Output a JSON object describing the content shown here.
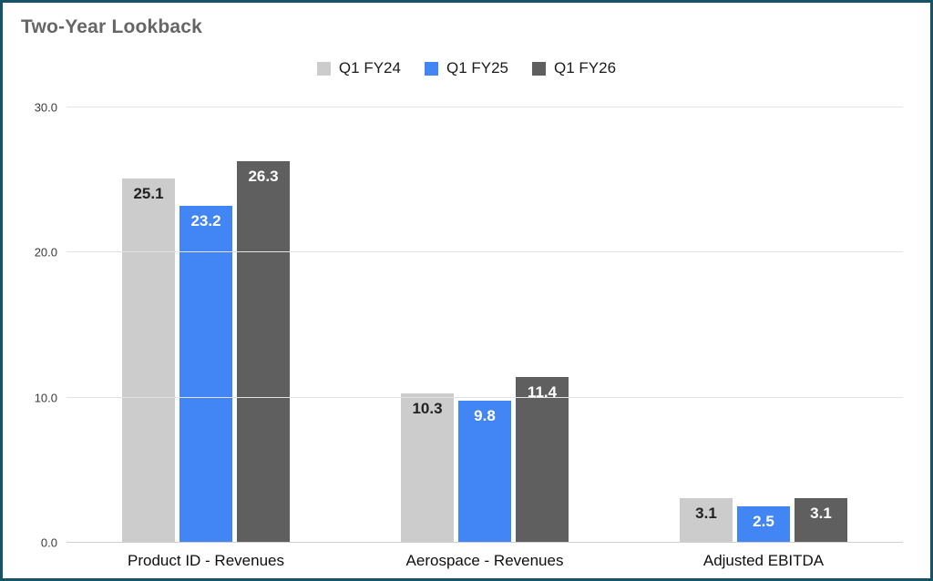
{
  "colors": {
    "border": "#16536b",
    "background": "#ffffff",
    "grid": "#e3e3e3",
    "title_text": "#666666",
    "axis_text": "#3c3c3c",
    "category_text": "#0f0f0f"
  },
  "chart_data": {
    "type": "bar",
    "title": "Two-Year Lookback",
    "categories": [
      "Product ID - Revenues",
      "Aerospace - Revenues",
      "Adjusted EBITDA"
    ],
    "series": [
      {
        "name": "Q1 FY24",
        "color": "#cccccc",
        "label_color": "#212121",
        "values": [
          25.1,
          10.3,
          3.1
        ]
      },
      {
        "name": "Q1 FY25",
        "color": "#4285f4",
        "label_color": "#ffffff",
        "values": [
          23.2,
          9.8,
          2.5
        ]
      },
      {
        "name": "Q1 FY26",
        "color": "#5f5f5f",
        "label_color": "#ffffff",
        "values": [
          26.3,
          11.4,
          3.1
        ]
      }
    ],
    "xlabel": "",
    "ylabel": "",
    "ylim": [
      0,
      30
    ],
    "yticks": [
      "0.0",
      "10.0",
      "20.0",
      "30.0"
    ],
    "grid": true,
    "legend_position": "top"
  }
}
